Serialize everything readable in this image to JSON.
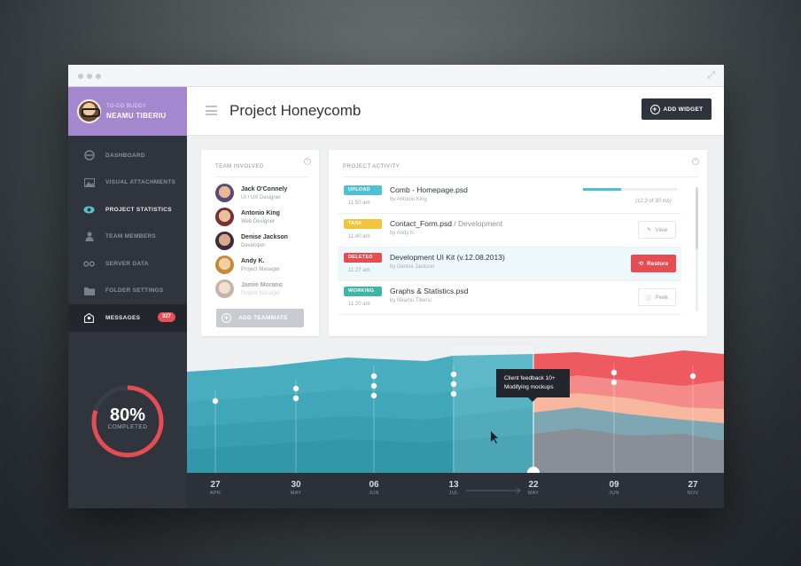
{
  "sidebar": {
    "app_name": "TO-DO BUDDY",
    "user_name": "NEAMU TIBERIU",
    "nav": [
      {
        "label": "DASHBOARD",
        "icon": "dashboard-icon"
      },
      {
        "label": "VISUAL ATTACHMENTS",
        "icon": "image-icon"
      },
      {
        "label": "PROJECT STATISTICS",
        "icon": "eye-icon"
      },
      {
        "label": "TEAM MEMBERS",
        "icon": "user-icon"
      },
      {
        "label": "SERVER DATA",
        "icon": "infinity-icon"
      },
      {
        "label": "FOLDER SETTINGS",
        "icon": "folder-icon"
      },
      {
        "label": "MESSAGES",
        "icon": "messages-icon",
        "badge": "327"
      }
    ],
    "completion": {
      "value": "80%",
      "label": "COMPLETED",
      "fraction": 0.8
    }
  },
  "header": {
    "title": "Project Honeycomb",
    "add_widget_label": "ADD WIDGET"
  },
  "team": {
    "title": "TEAM INVOLVED",
    "members": [
      {
        "name": "Jack O'Connely",
        "role": "UI / UX Designer"
      },
      {
        "name": "Antonio King",
        "role": "Web Designer"
      },
      {
        "name": "Denise Jackson",
        "role": "Developer"
      },
      {
        "name": "Andy K.",
        "role": "Project Manager"
      },
      {
        "name": "Jamie Morano",
        "role": "Project Manager"
      }
    ],
    "add_label": "ADD TEAMMATE"
  },
  "activity": {
    "title": "PROJECT ACTIVITY",
    "rows": [
      {
        "tag": "UPLOAD",
        "tag_color": "#4fbfd2",
        "time": "11:50 am",
        "file": "Comb - Homepage.psd",
        "sub": "",
        "by": "by Antonio King",
        "progress_text": "(12.3 of 30 mb)",
        "progress": 0.41
      },
      {
        "tag": "TASK",
        "tag_color": "#f3c43b",
        "time": "11:40 am",
        "file": "Contact_Form.psd",
        "sub": " / Development",
        "by": "by Andy K.",
        "action": "View"
      },
      {
        "tag": "DELETED",
        "tag_color": "#e64d53",
        "time": "11:27 am",
        "file": "Development UI Kit (v.12.08.2013)",
        "sub": "",
        "by": "by Denise Jackson",
        "action": "Restore"
      },
      {
        "tag": "WORKING",
        "tag_color": "#3fb5a6",
        "time": "11:20 am",
        "file": "Graphs & Statistics.psd",
        "sub": "",
        "by": "by Neamu Tiberiu",
        "action": "Peek"
      }
    ]
  },
  "timeline": {
    "tooltip_line1": "Client feedback 10+",
    "tooltip_line2": "Modifying mockups",
    "ticks": [
      {
        "day": "27",
        "month": "APR"
      },
      {
        "day": "30",
        "month": "MAY"
      },
      {
        "day": "06",
        "month": "JUN"
      },
      {
        "day": "13",
        "month": "JUL"
      },
      {
        "day": "22",
        "month": "MAY"
      },
      {
        "day": "09",
        "month": "JUN"
      },
      {
        "day": "27",
        "month": "NOV"
      }
    ],
    "markers": [
      1,
      2,
      3,
      3,
      0,
      2,
      1
    ]
  },
  "colors": {
    "accent_purple": "#a387cf",
    "teal": "#4fbfd2",
    "red": "#e64d53",
    "sidebar_bg": "#30343c"
  }
}
